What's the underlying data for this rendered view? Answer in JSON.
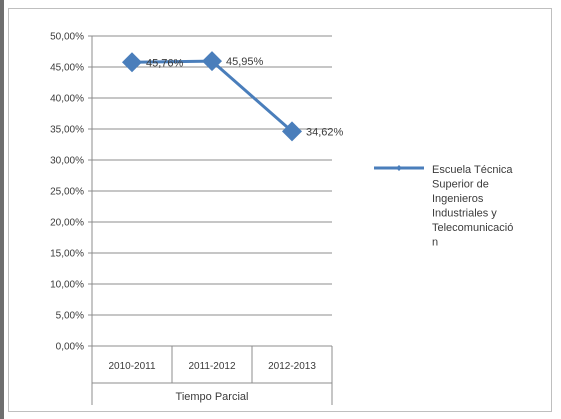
{
  "chart_data": {
    "type": "line",
    "categories": [
      "2010-2011",
      "2011-2012",
      "2012-2013"
    ],
    "series": [
      {
        "name": "Escuela Técnica Superior de Ingenieros Industriales y Telecomunicación",
        "values": [
          45.76,
          45.95,
          34.62
        ],
        "data_labels": [
          "45,76%",
          "45,95%",
          "34,62%"
        ],
        "color": "#4a7ebb"
      }
    ],
    "x_group_label": "Tiempo Parcial",
    "y_ticks": [
      "0,00%",
      "5,00%",
      "10,00%",
      "15,00%",
      "20,00%",
      "25,00%",
      "30,00%",
      "35,00%",
      "40,00%",
      "45,00%",
      "50,00%"
    ],
    "ylim": [
      0,
      50
    ],
    "grid": true,
    "legend_position": "right",
    "legend_lines": [
      "Escuela Técnica",
      "Superior de",
      "Ingenieros",
      "Industriales y",
      "Telecomunicació",
      "n"
    ]
  }
}
